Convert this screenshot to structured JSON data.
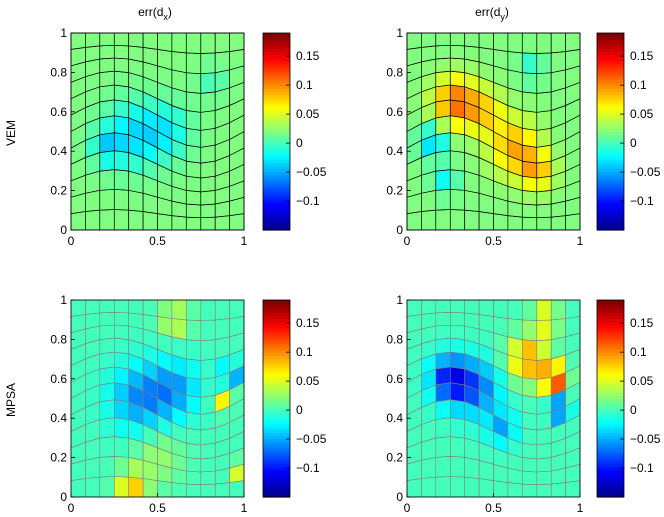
{
  "figure": {
    "column_titles": [
      {
        "base": "err(d",
        "sub": "x",
        "close": ")"
      },
      {
        "base": "err(d",
        "sub": "y",
        "close": ")"
      }
    ],
    "row_labels": [
      "VEM",
      "MPSA"
    ]
  },
  "colors": {
    "colormap": [
      "#00008f",
      "#0000ff",
      "#0080ff",
      "#00ffff",
      "#80ff80",
      "#ffff00",
      "#ff8000",
      "#ff0000",
      "#800000"
    ],
    "mesh_vem": "#000000",
    "mesh_mpsa": "#7f7f7f"
  },
  "chart_data": [
    {
      "type": "heatmap",
      "row": "VEM",
      "field": "err(dx)",
      "xlim": [
        0,
        1
      ],
      "ylim": [
        0,
        1
      ],
      "clim": [
        -0.15,
        0.19
      ],
      "xticks": [
        "0",
        "0.5",
        "1"
      ],
      "yticks": [
        "0",
        "0.2",
        "0.4",
        "0.6",
        "0.8",
        "1"
      ],
      "colorbar_ticks": [
        "0.15",
        "0.1",
        "0.05",
        "0",
        "−0.05",
        "−0.1"
      ],
      "colorbar_values": [
        0.15,
        0.1,
        0.05,
        0,
        -0.05,
        -0.1
      ],
      "background": 0.02,
      "blobs": [
        {
          "x": 0.35,
          "y": 0.48,
          "v": -0.05,
          "s": 0.12
        },
        {
          "x": 0.55,
          "y": 0.5,
          "v": -0.04,
          "s": 0.1
        },
        {
          "x": 0.2,
          "y": 0.42,
          "v": -0.04,
          "s": 0.06
        },
        {
          "x": 0.82,
          "y": 0.75,
          "v": -0.02,
          "s": 0.06
        }
      ]
    },
    {
      "type": "heatmap",
      "row": "VEM",
      "field": "err(dy)",
      "xlim": [
        0,
        1
      ],
      "ylim": [
        0,
        1
      ],
      "clim": [
        -0.15,
        0.19
      ],
      "xticks": [
        "0",
        "0.5",
        "1"
      ],
      "yticks": [
        "0",
        "0.2",
        "0.4",
        "0.6",
        "0.8",
        "1"
      ],
      "colorbar_ticks": [
        "0.15",
        "0.1",
        "0.05",
        "0",
        "−0.05",
        "−0.1"
      ],
      "colorbar_values": [
        0.15,
        0.1,
        0.05,
        0,
        -0.05,
        -0.1
      ],
      "background": 0.02,
      "blobs": [
        {
          "x": 0.28,
          "y": 0.65,
          "v": 0.09,
          "s": 0.09
        },
        {
          "x": 0.45,
          "y": 0.6,
          "v": 0.05,
          "s": 0.08
        },
        {
          "x": 0.62,
          "y": 0.42,
          "v": 0.07,
          "s": 0.1
        },
        {
          "x": 0.75,
          "y": 0.3,
          "v": 0.06,
          "s": 0.07
        },
        {
          "x": 0.15,
          "y": 0.45,
          "v": -0.06,
          "s": 0.06
        },
        {
          "x": 0.22,
          "y": 0.25,
          "v": -0.04,
          "s": 0.05
        },
        {
          "x": 0.72,
          "y": 0.82,
          "v": -0.03,
          "s": 0.05
        }
      ]
    },
    {
      "type": "heatmap",
      "row": "MPSA",
      "field": "err(dx)",
      "xlim": [
        0,
        1
      ],
      "ylim": [
        0,
        1
      ],
      "clim": [
        -0.15,
        0.19
      ],
      "xticks": [
        "0",
        "0.5",
        "1"
      ],
      "yticks": [
        "0",
        "0.2",
        "0.4",
        "0.6",
        "0.8",
        "1"
      ],
      "colorbar_ticks": [
        "0.15",
        "0.1",
        "0.05",
        "0",
        "−0.05",
        "−0.1"
      ],
      "colorbar_values": [
        0.15,
        0.1,
        0.05,
        0,
        -0.05,
        -0.1
      ],
      "background": 0.0,
      "blobs": [
        {
          "x": 0.4,
          "y": 0.5,
          "v": -0.06,
          "s": 0.12
        },
        {
          "x": 0.6,
          "y": 0.55,
          "v": -0.05,
          "s": 0.1
        },
        {
          "x": 0.88,
          "y": 0.5,
          "v": 0.07,
          "s": 0.04
        },
        {
          "x": 0.92,
          "y": 0.62,
          "v": -0.08,
          "s": 0.04
        },
        {
          "x": 0.35,
          "y": 0.05,
          "v": 0.08,
          "s": 0.06
        },
        {
          "x": 0.6,
          "y": 0.9,
          "v": 0.05,
          "s": 0.06
        },
        {
          "x": 0.5,
          "y": 0.2,
          "v": 0.03,
          "s": 0.1
        },
        {
          "x": 0.96,
          "y": 0.15,
          "v": 0.15,
          "s": 0.02
        }
      ]
    },
    {
      "type": "heatmap",
      "row": "MPSA",
      "field": "err(dy)",
      "xlim": [
        0,
        1
      ],
      "ylim": [
        0,
        1
      ],
      "clim": [
        -0.15,
        0.19
      ],
      "xticks": [
        "0",
        "0.5",
        "1"
      ],
      "yticks": [
        "0",
        "0.2",
        "0.4",
        "0.6",
        "0.8",
        "1"
      ],
      "colorbar_ticks": [
        "0.15",
        "0.1",
        "0.05",
        "0",
        "−0.05",
        "−0.1"
      ],
      "colorbar_values": [
        0.15,
        0.1,
        0.05,
        0,
        -0.05,
        -0.1
      ],
      "background": 0.0,
      "blobs": [
        {
          "x": 0.25,
          "y": 0.6,
          "v": -0.1,
          "s": 0.08
        },
        {
          "x": 0.4,
          "y": 0.55,
          "v": -0.07,
          "s": 0.1
        },
        {
          "x": 0.7,
          "y": 0.7,
          "v": 0.1,
          "s": 0.08
        },
        {
          "x": 0.85,
          "y": 0.6,
          "v": 0.15,
          "s": 0.05
        },
        {
          "x": 0.88,
          "y": 0.45,
          "v": -0.1,
          "s": 0.04
        },
        {
          "x": 0.55,
          "y": 0.35,
          "v": -0.05,
          "s": 0.06
        },
        {
          "x": 0.8,
          "y": 0.9,
          "v": 0.08,
          "s": 0.05
        }
      ]
    }
  ]
}
